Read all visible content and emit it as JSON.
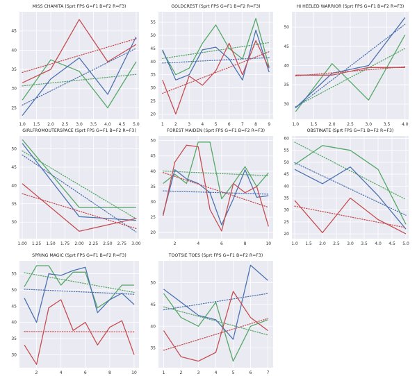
{
  "colors": {
    "B": "#4c72b0",
    "G": "#55a868",
    "R": "#c44e52",
    "plot_bg": "#eaeaf2",
    "grid": "#ffffff"
  },
  "chart_data": [
    {
      "type": "line",
      "title": "MISS CHAMITA (Sprt FPS G=F1 B=F2 R=F3)",
      "x": [
        1,
        2,
        3,
        4,
        5
      ],
      "xticks": [
        "1.0",
        "1.5",
        "2.0",
        "2.5",
        "3.0",
        "3.5",
        "4.0",
        "4.5",
        "5.0"
      ],
      "yticks": [
        25,
        30,
        35,
        40,
        45
      ],
      "xlim": [
        0.9,
        5.1
      ],
      "ylim": [
        22,
        50
      ],
      "series": [
        {
          "name": "G",
          "values": [
            27,
            37.5,
            34.5,
            25,
            37
          ]
        },
        {
          "name": "B",
          "values": [
            23,
            32.5,
            38,
            28.5,
            43.5
          ]
        },
        {
          "name": "R",
          "values": [
            31.5,
            35,
            48,
            37,
            41.5
          ]
        }
      ],
      "trend": true,
      "grid": true
    },
    {
      "type": "line",
      "title": "GOLDCREST (Sprt FPS G=F1 B=F2 R=F3)",
      "x": [
        1,
        2,
        3,
        4,
        5,
        6,
        7,
        8,
        9
      ],
      "xticks": [
        "1",
        "2",
        "3",
        "4",
        "5",
        "6",
        "7",
        "8",
        "9"
      ],
      "yticks": [
        20,
        25,
        30,
        35,
        40,
        45,
        50,
        55
      ],
      "xlim": [
        0.7,
        9.3
      ],
      "ylim": [
        18,
        59
      ],
      "series": [
        {
          "name": "G",
          "values": [
            44,
            35,
            37.5,
            47,
            54,
            45,
            41,
            56.5,
            38
          ]
        },
        {
          "name": "B",
          "values": [
            44.5,
            33,
            35,
            44.5,
            45.5,
            41,
            33,
            52,
            36
          ]
        },
        {
          "name": "R",
          "values": [
            33,
            20,
            34.5,
            31,
            36.5,
            47,
            35,
            48,
            37.5
          ]
        }
      ],
      "trend": true,
      "grid": true
    },
    {
      "type": "line",
      "title": "HI HEELED WARRIOR (Sprt FPS G=F1 B=F2 R=F3)",
      "x": [
        1,
        2,
        3,
        4
      ],
      "xticks": [
        "1.0",
        "1.5",
        "2.0",
        "2.5",
        "3.0",
        "3.5",
        "4.0"
      ],
      "yticks": [
        30,
        35,
        40,
        45,
        50
      ],
      "xlim": [
        0.9,
        4.1
      ],
      "ylim": [
        26,
        54
      ],
      "series": [
        {
          "name": "G",
          "values": [
            28,
            40.5,
            31,
            48
          ]
        },
        {
          "name": "B",
          "values": [
            29,
            38,
            40,
            52.5
          ]
        },
        {
          "name": "R",
          "values": [
            37.5,
            37.5,
            39.5,
            39.5
          ]
        }
      ],
      "trend": true,
      "grid": true
    },
    {
      "type": "line",
      "title": "GIRLFROMOUTERSPACE (Sprt FPS G=F1 B=F2 R=F3)",
      "x": [
        1,
        2,
        3
      ],
      "xticks": [
        "1.00",
        "1.25",
        "1.50",
        "1.75",
        "2.00",
        "2.25",
        "2.50",
        "2.75",
        "3.00"
      ],
      "yticks": [
        30,
        35,
        40,
        45,
        50
      ],
      "xlim": [
        0.95,
        3.05
      ],
      "ylim": [
        25.5,
        53.5
      ],
      "series": [
        {
          "name": "G",
          "values": [
            52.5,
            34,
            34
          ]
        },
        {
          "name": "B",
          "values": [
            51.5,
            31.5,
            30.5
          ]
        },
        {
          "name": "R",
          "values": [
            40.5,
            27.5,
            31
          ]
        }
      ],
      "trend": true,
      "grid": true
    },
    {
      "type": "line",
      "title": "FOREST MAIDEN (Sprt FPS G=F1 B=F2 R=F3)",
      "x": [
        1,
        2,
        3,
        4,
        5,
        6,
        7,
        8,
        9,
        10
      ],
      "xticks": [
        "2",
        "4",
        "6",
        "8",
        "10"
      ],
      "yticks": [
        20,
        25,
        30,
        35,
        40,
        45,
        50
      ],
      "xlim": [
        0.6,
        10.4
      ],
      "ylim": [
        18,
        51.5
      ],
      "series": [
        {
          "name": "G",
          "values": [
            36,
            39,
            36,
            49.5,
            49.5,
            31,
            36,
            41.5,
            35,
            39.5
          ]
        },
        {
          "name": "B",
          "values": [
            26,
            40.5,
            37.5,
            36,
            33,
            22.5,
            31,
            40.5,
            31.5,
            32
          ]
        },
        {
          "name": "R",
          "values": [
            25.5,
            43,
            48.5,
            48,
            27.5,
            20.5,
            36,
            33,
            35,
            22
          ]
        }
      ],
      "trend": true,
      "grid": true
    },
    {
      "type": "line",
      "title": "OBSTINATE (Sprt FPS G=F1 B=F2 R=F3)",
      "x": [
        1,
        2,
        3,
        4,
        5
      ],
      "xticks": [
        "1.0",
        "1.5",
        "2.0",
        "2.5",
        "3.0",
        "3.5",
        "4.0",
        "4.5",
        "5.0"
      ],
      "yticks": [
        20,
        25,
        30,
        35,
        40,
        45,
        50,
        55,
        60
      ],
      "xlim": [
        0.9,
        5.1
      ],
      "ylim": [
        18,
        61
      ],
      "series": [
        {
          "name": "G",
          "values": [
            49,
            57,
            55,
            47,
            24
          ]
        },
        {
          "name": "B",
          "values": [
            47,
            41,
            48,
            36,
            22
          ]
        },
        {
          "name": "R",
          "values": [
            34,
            20.5,
            35,
            26,
            20
          ]
        }
      ],
      "trend": true,
      "grid": true
    },
    {
      "type": "line",
      "title": "SPRING MAGIC (Sprt FPS G=F1 B=F2 R=F3)",
      "x": [
        1,
        2,
        3,
        4,
        5,
        6,
        7,
        8,
        9,
        10
      ],
      "xticks": [
        "2",
        "4",
        "6",
        "8",
        "10"
      ],
      "yticks": [
        30,
        35,
        40,
        45,
        50,
        55
      ],
      "xlim": [
        0.6,
        10.4
      ],
      "ylim": [
        26,
        59
      ],
      "series": [
        {
          "name": "G",
          "values": [
            51,
            57.5,
            57.5,
            51.5,
            55.5,
            55.5,
            44.5,
            47,
            51.5,
            51.5
          ]
        },
        {
          "name": "B",
          "values": [
            47.5,
            40,
            55,
            54.5,
            56,
            57,
            43,
            47,
            49,
            45.5
          ]
        },
        {
          "name": "R",
          "values": [
            33,
            27,
            44.5,
            47,
            37.5,
            40,
            33,
            38.5,
            40.5,
            30
          ]
        }
      ],
      "trend": true,
      "grid": true
    },
    {
      "type": "line",
      "title": "TOOTSIE TOES (Sprt FPS G=F1 B=F2 R=F3)",
      "x": [
        1,
        2,
        3,
        4,
        5,
        6,
        7
      ],
      "xticks": [
        "1",
        "2",
        "3",
        "4",
        "5",
        "6",
        "7"
      ],
      "yticks": [
        35,
        40,
        45,
        50
      ],
      "xlim": [
        0.7,
        7.3
      ],
      "ylim": [
        30.5,
        55
      ],
      "series": [
        {
          "name": "G",
          "values": [
            47.5,
            42,
            40,
            45.5,
            32,
            40,
            41.5
          ]
        },
        {
          "name": "B",
          "values": [
            48.5,
            45.5,
            42.5,
            41.5,
            37,
            54,
            50.5
          ]
        },
        {
          "name": "R",
          "values": [
            39,
            33,
            32,
            34,
            48,
            42,
            39
          ]
        }
      ],
      "trend": true,
      "grid": true
    }
  ]
}
